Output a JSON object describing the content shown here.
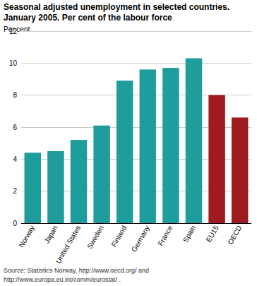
{
  "chart_data": {
    "type": "bar",
    "title": "Seasonal adjusted unemployment in selected countries.",
    "subtitle": "January 2005. Per cent of the labour force",
    "y_label": "Per cent",
    "categories": [
      "Norway",
      "Japan",
      "United States",
      "Sweden",
      "Finland",
      "Germany",
      "France",
      "Spain",
      "EU15",
      "OECD"
    ],
    "values": [
      4.4,
      4.5,
      5.2,
      6.1,
      8.9,
      9.6,
      9.7,
      10.3,
      8.0,
      6.6
    ],
    "colors": [
      "#1f9c9c",
      "#1f9c9c",
      "#1f9c9c",
      "#1f9c9c",
      "#1f9c9c",
      "#1f9c9c",
      "#1f9c9c",
      "#1f9c9c",
      "#9e1b1f",
      "#9e1b1f"
    ],
    "ylim": [
      0,
      12
    ],
    "yticks": [
      0,
      2,
      4,
      6,
      8,
      10,
      12
    ],
    "grid": true,
    "annotations": [
      "Source: Statistics Norway, http://www.oecd.org/ and",
      "http://www.europa.eu.int/comm/eurostat/ ."
    ]
  }
}
